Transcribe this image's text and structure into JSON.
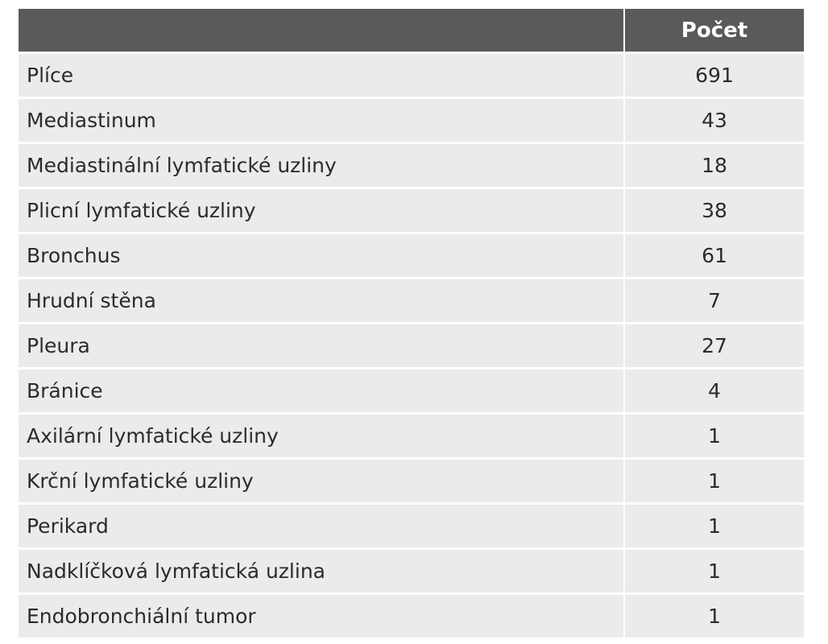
{
  "table": {
    "headers": [
      "",
      "Počet"
    ],
    "rows": [
      {
        "label": "Plíce",
        "value": "691"
      },
      {
        "label": "Mediastinum",
        "value": "43"
      },
      {
        "label": "Mediastinální lymfatické uzliny",
        "value": "18"
      },
      {
        "label": "Plicní lymfatické uzliny",
        "value": "38"
      },
      {
        "label": "Bronchus",
        "value": "61"
      },
      {
        "label": "Hrudní stěna",
        "value": "7"
      },
      {
        "label": "Pleura",
        "value": "27"
      },
      {
        "label": "Bránice",
        "value": "4"
      },
      {
        "label": "Axilární lymfatické uzliny",
        "value": "1"
      },
      {
        "label": "Krční lymfatické uzliny",
        "value": "1"
      },
      {
        "label": "Perikard",
        "value": "1"
      },
      {
        "label": "Nadklíčková lymfatická uzlina",
        "value": "1"
      },
      {
        "label": "Endobronchiální tumor",
        "value": "1"
      }
    ]
  },
  "colors": {
    "header_background": "#5a5a5a",
    "header_text": "#ffffff",
    "row_background": "#ebebeb",
    "row_text": "#2b2b2b",
    "separator": "#ffffff"
  }
}
